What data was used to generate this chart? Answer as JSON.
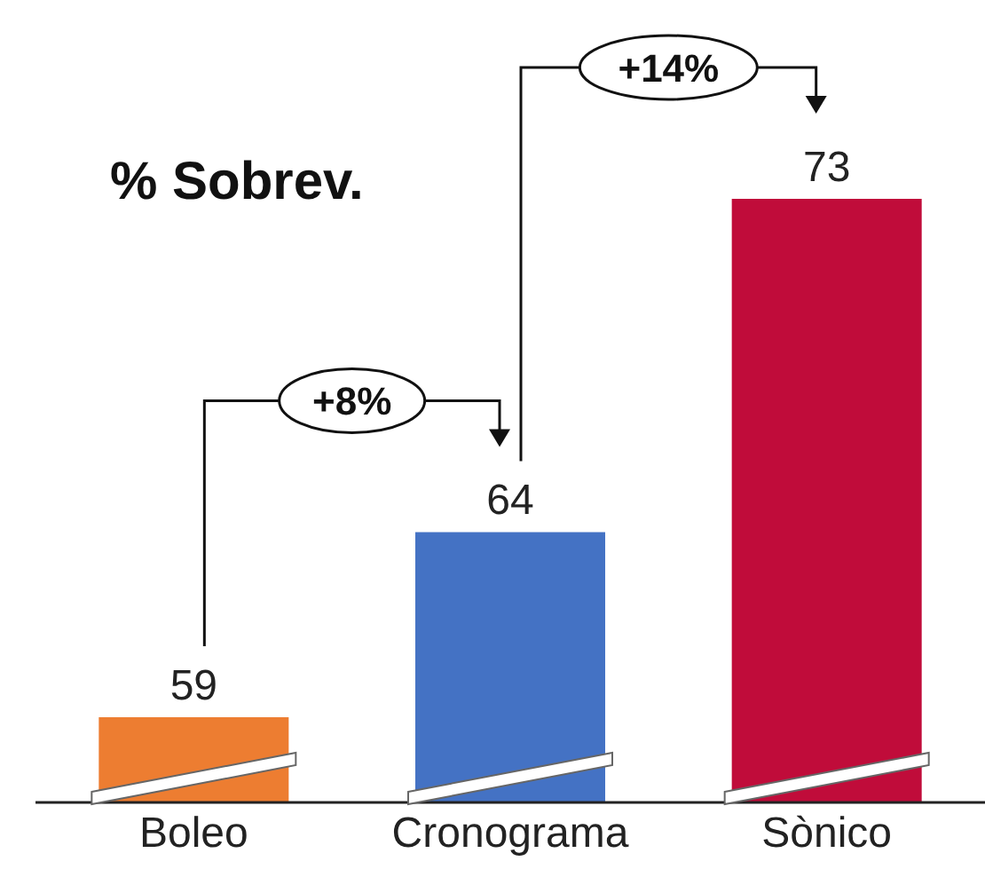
{
  "chart_data": {
    "type": "bar",
    "categories": [
      "Boleo",
      "Cronograma",
      "Sònico"
    ],
    "values": [
      59,
      64,
      73
    ],
    "colors": [
      "#ed7d31",
      "#4472c4",
      "#c00c3a"
    ],
    "ylim": [
      56.7,
      73
    ],
    "data_labels": true,
    "grid": false,
    "legend": false,
    "tick_labels": "x",
    "annotations": [
      "% Sobrev.",
      "+8%",
      "+14%"
    ]
  }
}
